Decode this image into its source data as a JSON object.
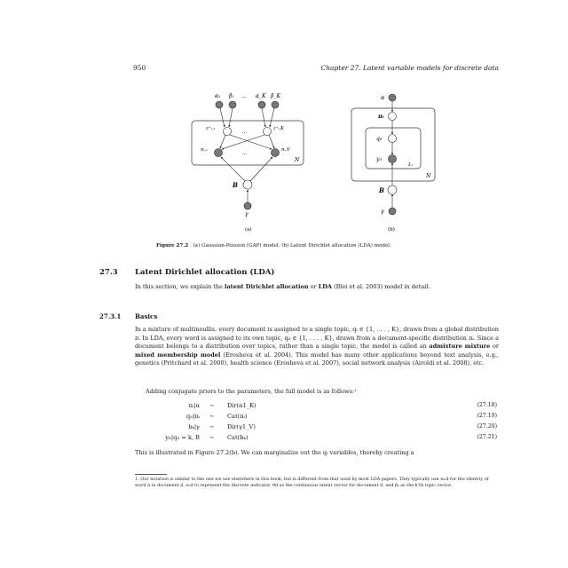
{
  "header": {
    "page_number": "950",
    "chapter": "Chapter 27.  Latent variable models for discrete data"
  },
  "figure": {
    "left": {
      "top_labels": [
        "α₁",
        "β₁",
        "···",
        "α_K",
        "β_K"
      ],
      "z_left": "z⁺ᵢ,₁",
      "z_right": "z⁺ᵢ,K",
      "n_left": "nᵢ,₁",
      "n_right": "nᵢ,V",
      "dots": "...",
      "plate": "N",
      "B": "B",
      "gamma": "γ",
      "sub": "(a)"
    },
    "right": {
      "alpha": "α",
      "pi": "πᵢ",
      "q": "qᵢₗ",
      "y": "yᵢₗ",
      "plate_inner": "Lᵢ",
      "plate_outer": "N",
      "B": "B",
      "gamma": "γ",
      "sub": "(b)"
    },
    "caption_label": "Figure 27.2",
    "caption_text": "(a) Gaussian-Poisson (GAP) model. (b) Latent Dirichlet allocation (LDA) model."
  },
  "section": {
    "number": "27.3",
    "title": "Latent Dirichlet allocation (LDA)"
  },
  "intro": {
    "pre": "In this section, we explain the ",
    "b1": "latent Dirichlet allocation",
    "mid": " or ",
    "b2": "LDA",
    "post": " (Blei et al. 2003) model in detail."
  },
  "subsection": {
    "number": "27.3.1",
    "title": "Basics"
  },
  "para1": {
    "t1": "In a mixture of multinoullis, every document is assigned to a single topic, qᵢ ∈ {1, . . . , K}, drawn from a global distribution π. In LDA, every word is assigned to its own topic, qᵢₗ ∈ {1, . . . , K}, drawn from a document-specific distribution πᵢ. Since a document belongs to a distribution over topics, rather than a single topic, the model is called an ",
    "b1": "admixture mixture",
    "t2": " or ",
    "b2": "mixed membership model",
    "t3": " (Erosheva et al. 2004). This model has many other applications beyond text analysis, e.g., genetics (Pritchard et al. 2000), health science (Erosheva et al. 2007), social network analysis (Airoldi et al. 2008), etc."
  },
  "para2": "Adding conjugate priors to the parameters, the full model is as follows:¹",
  "equations": [
    {
      "lhs": "πᵢ|α",
      "rel": "∼",
      "rhs": "Dir(α1_K)",
      "num": "(27.18)"
    },
    {
      "lhs": "qᵢₗ|πᵢ",
      "rel": "∼",
      "rhs": "Cat(πᵢ)",
      "num": "(27.19)"
    },
    {
      "lhs": "bₖ|γ",
      "rel": "∼",
      "rhs": "Dir(γ1_V)",
      "num": "(27.20)"
    },
    {
      "lhs": "yᵢₗ|qᵢₗ = k, B",
      "rel": "∼",
      "rhs": "Cat(bₖ)",
      "num": "(27.21)"
    }
  ],
  "para3": "This is illustrated in Figure 27.2(b). We can marginalize out the qᵢ variables, thereby creating a",
  "footnote": "1. Our notation is similar to the one we use elsewhere in this book, but is different from that used by most LDA papers. They typically use wₙd for the identity of word n in document d, zₙd to represent the discrete indicator, θd as the continuous latent vector for document d, and βₖ as the k'th topic vector."
}
